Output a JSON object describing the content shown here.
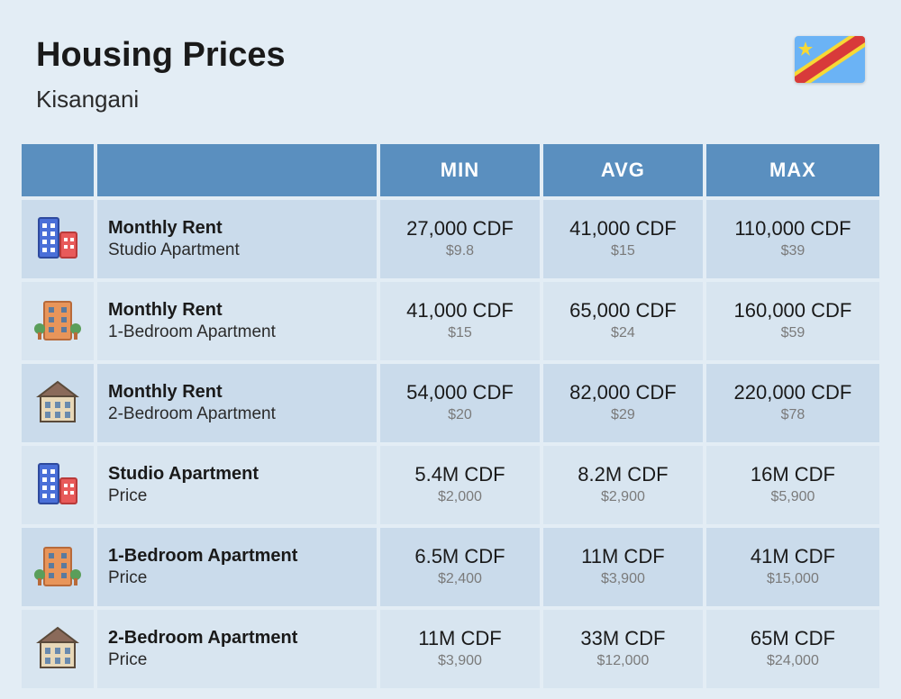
{
  "header": {
    "title": "Housing Prices",
    "city": "Kisangani"
  },
  "flag": {
    "name": "drc-flag",
    "bg": "#6bb3f5",
    "stripe_outer": "#f7d935",
    "stripe_inner": "#d83a3a",
    "star": "#f7d935"
  },
  "columns": {
    "min": "MIN",
    "avg": "AVG",
    "max": "MAX"
  },
  "icons": {
    "studio": {
      "tall_fill": "#4a6fd8",
      "tall_stroke": "#2e4a9e",
      "short_fill": "#e85a5a",
      "short_stroke": "#b83a3a",
      "window": "#ffffff"
    },
    "onebed": {
      "fill": "#e8955a",
      "stroke": "#b86a3a",
      "window": "#5a7a9e",
      "tree": "#5a9e5a"
    },
    "twobed": {
      "roof": "#8a6a5a",
      "wall": "#e8d8b8",
      "window": "#6a8aae",
      "stroke": "#5a4a3a"
    }
  },
  "rows": [
    {
      "icon": "studio",
      "title": "Monthly Rent",
      "subtitle": "Studio Apartment",
      "min_main": "27,000 CDF",
      "min_sub": "$9.8",
      "avg_main": "41,000 CDF",
      "avg_sub": "$15",
      "max_main": "110,000 CDF",
      "max_sub": "$39"
    },
    {
      "icon": "onebed",
      "title": "Monthly Rent",
      "subtitle": "1-Bedroom Apartment",
      "min_main": "41,000 CDF",
      "min_sub": "$15",
      "avg_main": "65,000 CDF",
      "avg_sub": "$24",
      "max_main": "160,000 CDF",
      "max_sub": "$59"
    },
    {
      "icon": "twobed",
      "title": "Monthly Rent",
      "subtitle": "2-Bedroom Apartment",
      "min_main": "54,000 CDF",
      "min_sub": "$20",
      "avg_main": "82,000 CDF",
      "avg_sub": "$29",
      "max_main": "220,000 CDF",
      "max_sub": "$78"
    },
    {
      "icon": "studio",
      "title": "Studio Apartment",
      "subtitle": "Price",
      "min_main": "5.4M CDF",
      "min_sub": "$2,000",
      "avg_main": "8.2M CDF",
      "avg_sub": "$2,900",
      "max_main": "16M CDF",
      "max_sub": "$5,900"
    },
    {
      "icon": "onebed",
      "title": "1-Bedroom Apartment",
      "subtitle": "Price",
      "min_main": "6.5M CDF",
      "min_sub": "$2,400",
      "avg_main": "11M CDF",
      "avg_sub": "$3,900",
      "max_main": "41M CDF",
      "max_sub": "$15,000"
    },
    {
      "icon": "twobed",
      "title": "2-Bedroom Apartment",
      "subtitle": "Price",
      "min_main": "11M CDF",
      "min_sub": "$3,900",
      "avg_main": "33M CDF",
      "avg_sub": "$12,000",
      "max_main": "65M CDF",
      "max_sub": "$24,000"
    }
  ],
  "style": {
    "row_even_bg": "#cadbeb",
    "row_odd_bg": "#d8e5f0",
    "header_bg": "#5a8fbf",
    "page_bg": "#e3edf5"
  }
}
